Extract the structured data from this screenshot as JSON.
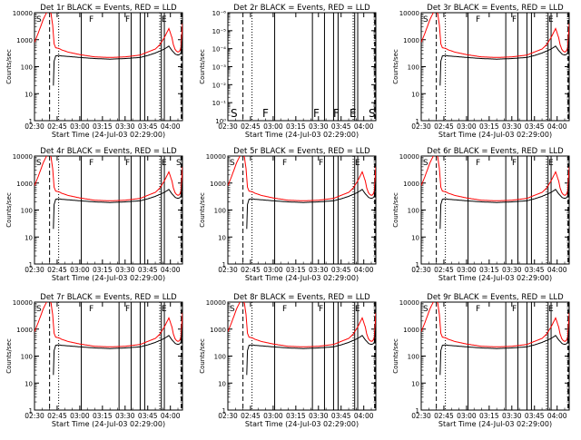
{
  "figure": {
    "background": "#ffffff",
    "axis_color": "#000000",
    "events_color": "#000000",
    "lld_color": "#ff0000"
  },
  "chart_data": [
    {
      "type": "line",
      "title": "Det 1r BLACK = Events, RED = LLD",
      "xlabel": "Start Time (24-Jul-03 02:29:00)",
      "ylabel": "Counts/sec",
      "yscale": "log",
      "ylim": [
        1,
        10000
      ],
      "x_ticks": [
        "02:30",
        "02:45",
        "03:00",
        "03:15",
        "03:30",
        "03:45",
        "04:00"
      ],
      "y_ticks": [
        "1",
        "10",
        "100",
        "1000",
        "10000"
      ],
      "markers": [
        "S",
        "F",
        "F",
        "E"
      ],
      "profile": "std",
      "series": [
        {
          "name": "Events",
          "color": "#000000",
          "values": []
        },
        {
          "name": "LLD",
          "color": "#ff0000",
          "values": []
        }
      ]
    },
    {
      "type": "line",
      "title": "Det 2r BLACK = Events, RED = LLD",
      "xlabel": "Start Time (24-Jul-03 02:29:00)",
      "ylabel": "Counts/sec",
      "yscale": "log",
      "ylim": [
        1,
        1e-06
      ],
      "x_ticks": [
        "02:30",
        "02:45",
        "03:00",
        "03:15",
        "03:30",
        "03:45",
        "04:00"
      ],
      "y_ticks": [
        "10⁰",
        "10⁻¹",
        "10⁻²",
        "10⁻³",
        "10⁻⁴",
        "10⁻⁵",
        "10⁻⁶"
      ],
      "markers": [
        "S",
        "F",
        "F",
        "F",
        "E",
        "S"
      ],
      "profile": "empty",
      "series": [
        {
          "name": "Events",
          "color": "#000000",
          "values": []
        },
        {
          "name": "LLD",
          "color": "#ff0000",
          "values": []
        }
      ]
    },
    {
      "type": "line",
      "title": "Det 3r BLACK = Events, RED = LLD",
      "xlabel": "Start Time (24-Jul-03 02:29:00)",
      "ylabel": "Counts/sec",
      "yscale": "log",
      "ylim": [
        1,
        10000
      ],
      "x_ticks": [
        "02:30",
        "02:45",
        "03:00",
        "03:15",
        "03:30",
        "03:45",
        "04:00"
      ],
      "y_ticks": [
        "1",
        "10",
        "100",
        "1000",
        "10000"
      ],
      "markers": [
        "S",
        "F",
        "F",
        "E"
      ],
      "profile": "std",
      "series": [
        {
          "name": "Events",
          "color": "#000000",
          "values": []
        },
        {
          "name": "LLD",
          "color": "#ff0000",
          "values": []
        }
      ]
    },
    {
      "type": "line",
      "title": "Det 4r BLACK = Events, RED = LLD",
      "xlabel": "Start Time (24-Jul-03 02:29:00)",
      "ylabel": "Counts/sec",
      "yscale": "log",
      "ylim": [
        1,
        10000
      ],
      "x_ticks": [
        "02:30",
        "02:45",
        "03:00",
        "03:15",
        "03:30",
        "03:45",
        "04:00"
      ],
      "y_ticks": [
        "1",
        "10",
        "100",
        "1000",
        "10000"
      ],
      "markers": [
        "S",
        "F",
        "F",
        "E",
        "S"
      ],
      "profile": "std",
      "series": [
        {
          "name": "Events",
          "color": "#000000",
          "values": []
        },
        {
          "name": "LLD",
          "color": "#ff0000",
          "values": []
        }
      ]
    },
    {
      "type": "line",
      "title": "Det 5r BLACK = Events, RED = LLD",
      "xlabel": "Start Time (24-Jul-03 02:29:00)",
      "ylabel": "Counts/sec",
      "yscale": "log",
      "ylim": [
        1,
        10000
      ],
      "x_ticks": [
        "02:30",
        "02:45",
        "03:00",
        "03:15",
        "03:30",
        "03:45",
        "04:00"
      ],
      "y_ticks": [
        "1",
        "10",
        "100",
        "1000",
        "10000"
      ],
      "markers": [
        "S",
        "F",
        "F",
        "E"
      ],
      "profile": "std",
      "series": [
        {
          "name": "Events",
          "color": "#000000",
          "values": []
        },
        {
          "name": "LLD",
          "color": "#ff0000",
          "values": []
        }
      ]
    },
    {
      "type": "line",
      "title": "Det 6r BLACK = Events, RED = LLD",
      "xlabel": "Start Time (24-Jul-03 02:29:00)",
      "ylabel": "Counts/sec",
      "yscale": "log",
      "ylim": [
        1,
        10000
      ],
      "x_ticks": [
        "02:30",
        "02:45",
        "03:00",
        "03:15",
        "03:30",
        "03:45",
        "04:00"
      ],
      "y_ticks": [
        "1",
        "10",
        "100",
        "1000",
        "10000"
      ],
      "markers": [
        "S",
        "F",
        "F",
        "E"
      ],
      "profile": "std",
      "series": [
        {
          "name": "Events",
          "color": "#000000",
          "values": []
        },
        {
          "name": "LLD",
          "color": "#ff0000",
          "values": []
        }
      ]
    },
    {
      "type": "line",
      "title": "Det 7r BLACK = Events, RED = LLD",
      "xlabel": "Start Time (24-Jul-03 02:29:00)",
      "ylabel": "Counts/sec",
      "yscale": "log",
      "ylim": [
        1,
        10000
      ],
      "x_ticks": [
        "02:30",
        "02:45",
        "03:00",
        "03:15",
        "03:30",
        "03:45",
        "04:00"
      ],
      "y_ticks": [
        "1",
        "10",
        "100",
        "1000",
        "10000"
      ],
      "markers": [
        "S",
        "F",
        "F",
        "E"
      ],
      "profile": "std",
      "series": [
        {
          "name": "Events",
          "color": "#000000",
          "values": []
        },
        {
          "name": "LLD",
          "color": "#ff0000",
          "values": []
        }
      ]
    },
    {
      "type": "line",
      "title": "Det 8r BLACK = Events, RED = LLD",
      "xlabel": "Start Time (24-Jul-03 02:29:00)",
      "ylabel": "Counts/sec",
      "yscale": "log",
      "ylim": [
        1,
        10000
      ],
      "x_ticks": [
        "02:30",
        "02:45",
        "03:00",
        "03:15",
        "03:30",
        "03:45",
        "04:00"
      ],
      "y_ticks": [
        "1",
        "10",
        "100",
        "1000",
        "10000"
      ],
      "markers": [
        "S",
        "F",
        "F",
        "E"
      ],
      "profile": "std",
      "series": [
        {
          "name": "Events",
          "color": "#000000",
          "values": []
        },
        {
          "name": "LLD",
          "color": "#ff0000",
          "values": []
        }
      ]
    },
    {
      "type": "line",
      "title": "Det 9r BLACK = Events, RED = LLD",
      "xlabel": "Start Time (24-Jul-03 02:29:00)",
      "ylabel": "Counts/sec",
      "yscale": "log",
      "ylim": [
        1,
        10000
      ],
      "x_ticks": [
        "02:30",
        "02:45",
        "03:00",
        "03:15",
        "03:30",
        "03:45",
        "04:00"
      ],
      "y_ticks": [
        "1",
        "10",
        "100",
        "1000",
        "10000"
      ],
      "markers": [
        "S",
        "F",
        "F",
        "E"
      ],
      "profile": "std",
      "series": [
        {
          "name": "Events",
          "color": "#000000",
          "values": []
        },
        {
          "name": "LLD",
          "color": "#ff0000",
          "values": []
        }
      ]
    }
  ],
  "time_axis": {
    "start_min": 150,
    "end_min": 248
  },
  "curves": {
    "lld_times": [
      150,
      152,
      154,
      156,
      158,
      160,
      161,
      162,
      163,
      164,
      166,
      168,
      172,
      180,
      190,
      200,
      210,
      220,
      225,
      230,
      233,
      236,
      239,
      241,
      242,
      243,
      244,
      245,
      246,
      247,
      248
    ],
    "lld_values": [
      800,
      1500,
      3000,
      6000,
      10000,
      12000,
      9000,
      3500,
      700,
      500,
      480,
      420,
      350,
      280,
      230,
      220,
      230,
      270,
      350,
      450,
      650,
      1200,
      2600,
      1200,
      650,
      450,
      380,
      350,
      370,
      500,
      4000
    ],
    "events_times": [
      162.5,
      163,
      164,
      166,
      168,
      172,
      180,
      190,
      200,
      210,
      220,
      225,
      230,
      233,
      236,
      239,
      241,
      242,
      243,
      244,
      245,
      246,
      247,
      248
    ],
    "events_values": [
      20,
      160,
      250,
      260,
      250,
      240,
      220,
      200,
      190,
      200,
      220,
      260,
      320,
      380,
      450,
      580,
      400,
      350,
      300,
      280,
      270,
      280,
      320,
      1200
    ]
  },
  "boundaries": {
    "solid": [
      181,
      206,
      214,
      220,
      223,
      234,
      236
    ],
    "dashed": [
      160,
      247.5
    ],
    "dotted": [
      166,
      233
    ]
  }
}
